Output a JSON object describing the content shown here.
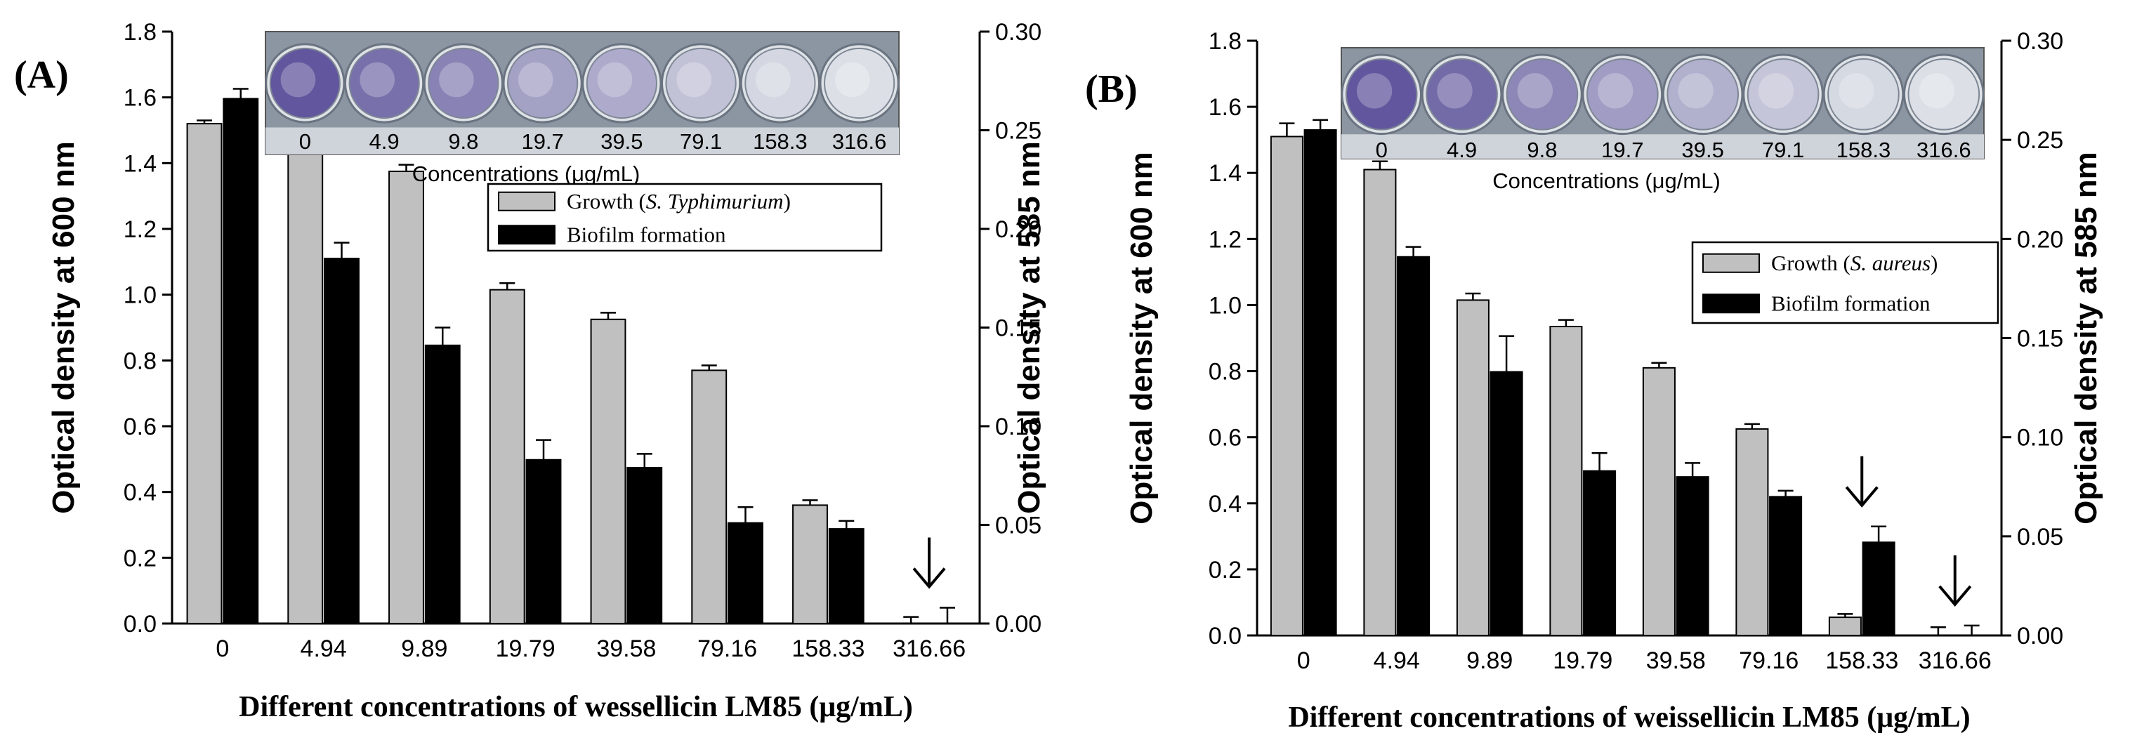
{
  "colors": {
    "growth": "#c0c0c0",
    "biofilm": "#000000",
    "inset_bg": "#8c96a2",
    "well_stain": "#5b4f9a"
  },
  "chart_data": [
    {
      "type": "bar",
      "panel_label": "(A)",
      "categories": [
        "0",
        "4.94",
        "9.89",
        "19.79",
        "39.58",
        "79.16",
        "158.33",
        "316.66"
      ],
      "xlabel": "Different concentrations of wessellicin LM85 (μg/mL)",
      "ylabel": "Optical density at 600 nm",
      "y2label": "Optical density at 585 nm",
      "ylim": [
        0,
        1.8
      ],
      "y2lim": [
        0,
        0.3
      ],
      "yticks": [
        "0.0",
        "0.2",
        "0.4",
        "0.6",
        "0.8",
        "1.0",
        "1.2",
        "1.4",
        "1.6",
        "1.8"
      ],
      "y2ticks": [
        "0.00",
        "0.05",
        "0.10",
        "0.15",
        "0.20",
        "0.25",
        "0.30"
      ],
      "legend_position": "upper-right",
      "series": [
        {
          "name": "Growth",
          "name_italic": "S. Typhimurium",
          "axis": "left",
          "values": [
            1.52,
            1.48,
            1.375,
            1.015,
            0.925,
            0.77,
            0.36,
            0.0
          ],
          "errors": [
            0.01,
            0.01,
            0.02,
            0.02,
            0.02,
            0.015,
            0.015,
            0.02
          ]
        },
        {
          "name": "Biofilm formation",
          "axis": "right",
          "values": [
            0.266,
            0.185,
            0.141,
            0.083,
            0.079,
            0.051,
            0.048,
            0.0
          ],
          "errors": [
            0.005,
            0.008,
            0.009,
            0.01,
            0.007,
            0.008,
            0.004,
            0.008
          ]
        }
      ],
      "arrows_on": [
        "316.66"
      ],
      "inset": {
        "concentrations": [
          "0",
          "4.9",
          "9.8",
          "19.7",
          "39.5",
          "79.1",
          "158.3",
          "316.6"
        ],
        "title": "Concentrations (μg/mL)",
        "stain_levels": [
          0.95,
          0.78,
          0.65,
          0.45,
          0.38,
          0.22,
          0.08,
          0.02
        ]
      }
    },
    {
      "type": "bar",
      "panel_label": "(B)",
      "categories": [
        "0",
        "4.94",
        "9.89",
        "19.79",
        "39.58",
        "79.16",
        "158.33",
        "316.66"
      ],
      "xlabel": "Different concentrations of weissellicin LM85 (μg/mL)",
      "ylabel": "Optical density at 600 nm",
      "y2label": "Optical density at 585 nm",
      "ylim": [
        0,
        1.8
      ],
      "y2lim": [
        0,
        0.3
      ],
      "yticks": [
        "0.0",
        "0.2",
        "0.4",
        "0.6",
        "0.8",
        "1.0",
        "1.2",
        "1.4",
        "1.6",
        "1.8"
      ],
      "y2ticks": [
        "0.00",
        "0.05",
        "0.10",
        "0.15",
        "0.20",
        "0.25",
        "0.30"
      ],
      "legend_position": "right",
      "series": [
        {
          "name": "Growth",
          "name_italic": "S. aureus",
          "axis": "left",
          "values": [
            1.51,
            1.41,
            1.015,
            0.935,
            0.81,
            0.625,
            0.055,
            0.0
          ],
          "errors": [
            0.04,
            0.025,
            0.02,
            0.02,
            0.015,
            0.015,
            0.01,
            0.025
          ]
        },
        {
          "name": "Biofilm formation",
          "axis": "right",
          "values": [
            0.255,
            0.191,
            0.133,
            0.083,
            0.08,
            0.07,
            0.047,
            0.0
          ],
          "errors": [
            0.005,
            0.005,
            0.018,
            0.009,
            0.007,
            0.003,
            0.008,
            0.005
          ]
        }
      ],
      "arrows_on": [
        "158.33",
        "316.66"
      ],
      "inset": {
        "concentrations": [
          "0",
          "4.9",
          "9.8",
          "19.7",
          "39.5",
          "79.1",
          "158.3",
          "316.6"
        ],
        "title": "Concentrations (μg/mL)",
        "stain_levels": [
          0.95,
          0.82,
          0.62,
          0.48,
          0.35,
          0.2,
          0.07,
          0.02
        ]
      }
    }
  ]
}
